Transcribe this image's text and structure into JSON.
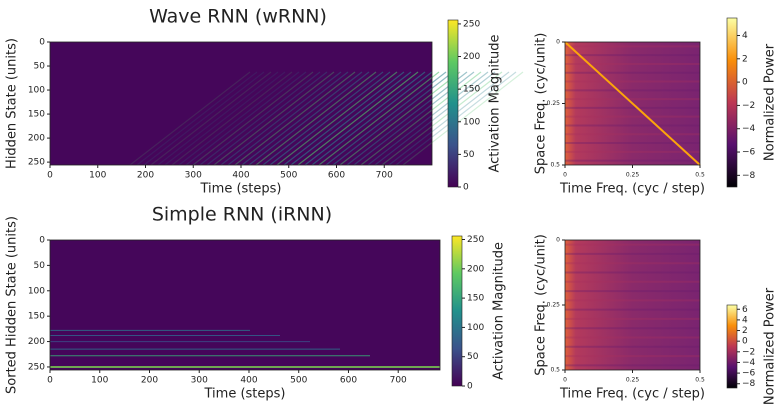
{
  "chart_data": [
    {
      "type": "heatmap",
      "title": "Wave RNN (wRNN)",
      "xlabel": "Time (steps)",
      "ylabel": "Hidden State (units)",
      "colormap": "viridis",
      "xlim": [
        0,
        800
      ],
      "ylim": [
        0,
        256
      ],
      "y_inverted": true,
      "xticks": [
        0,
        100,
        200,
        300,
        400,
        500,
        600,
        700
      ],
      "yticks": [
        0,
        50,
        100,
        150,
        200,
        250
      ],
      "colorbar": {
        "label": "Activation Magnitude",
        "lim": [
          0,
          256
        ],
        "ticks": [
          0,
          50,
          100,
          150,
          200,
          250
        ]
      }
    },
    {
      "type": "heatmap",
      "xlabel": "Time Freq. (cyc / step)",
      "ylabel": "Space Freq.  (cyc/unit)",
      "colormap": "inferno",
      "xlim": [
        0,
        0.5
      ],
      "ylim": [
        0,
        0.5
      ],
      "y_inverted": true,
      "xticks": [
        0,
        0.25,
        0.5
      ],
      "yticks": [
        0,
        0.25,
        0.5
      ],
      "colorbar": {
        "label": "Normalized Power",
        "lim": [
          -9,
          5.5
        ],
        "ticks": [
          {
            "value": -8,
            "label": "−8"
          },
          {
            "value": -6,
            "label": "−6"
          },
          {
            "value": -4,
            "label": "−4"
          },
          {
            "value": -2,
            "label": "−2"
          },
          0,
          2,
          4
        ]
      }
    },
    {
      "type": "heatmap",
      "title": "Simple RNN (iRNN)",
      "xlabel": "Time (steps)",
      "ylabel": "Sorted Hidden State (units)",
      "colormap": "viridis",
      "xlim": [
        0,
        784
      ],
      "ylim": [
        0,
        256
      ],
      "y_inverted": true,
      "xticks": [
        0,
        100,
        200,
        300,
        400,
        500,
        600,
        700
      ],
      "yticks": [
        0,
        50,
        100,
        150,
        200,
        250
      ],
      "colorbar": {
        "label": "Activation Magnitude",
        "lim": [
          0,
          256
        ],
        "ticks": [
          0,
          50,
          100,
          150,
          200,
          250
        ]
      }
    },
    {
      "type": "heatmap",
      "xlabel": "Time Freq. (cyc / step)",
      "ylabel": "Space Freq.  (cyc/unit)",
      "colormap": "inferno",
      "xlim": [
        0,
        0.5
      ],
      "ylim": [
        0,
        0.5
      ],
      "y_inverted": true,
      "xticks": [
        0,
        0.25,
        0.5
      ],
      "yticks": [
        0,
        0.25,
        0.5
      ],
      "colorbar": {
        "label": "Normalized Power",
        "lim": [
          -8.8,
          6.8
        ],
        "ticks": [
          {
            "value": -8,
            "label": "−8"
          },
          {
            "value": -6,
            "label": "−6"
          },
          {
            "value": -4,
            "label": "−4"
          },
          {
            "value": -2,
            "label": "−2"
          },
          0,
          2,
          4,
          6
        ]
      }
    }
  ]
}
